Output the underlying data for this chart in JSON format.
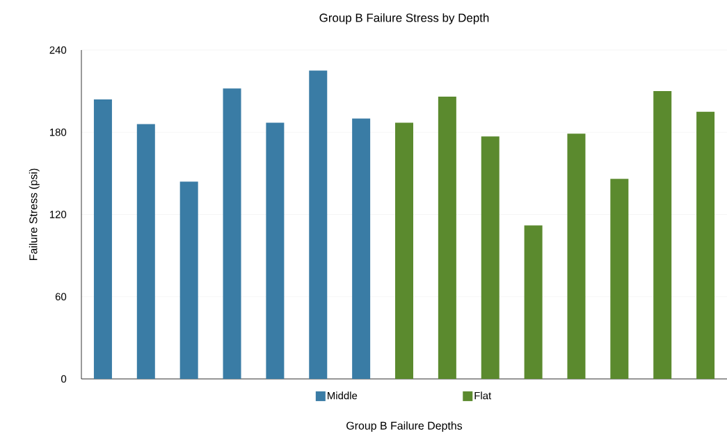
{
  "chart_data": {
    "type": "bar",
    "title": "Group B Failure Stress by Depth",
    "xlabel": "Group B Failure Depths",
    "ylabel": "Failure Stress (psi)",
    "categories": [
      null,
      null,
      null,
      null,
      null,
      null,
      null,
      null,
      null,
      null,
      null,
      null,
      null,
      null,
      null
    ],
    "series": [
      {
        "name": "Middle",
        "color": "#3a7ca5",
        "values": [
          204,
          186,
          144,
          212,
          187,
          225,
          190,
          null,
          null,
          null,
          null,
          null,
          null,
          null,
          null
        ]
      },
      {
        "name": "Flat",
        "color": "#5b8a2e",
        "values": [
          null,
          null,
          null,
          null,
          null,
          null,
          null,
          187,
          206,
          177,
          112,
          179,
          146,
          210,
          195
        ]
      }
    ],
    "ylim": [
      0,
      240
    ],
    "yticks": [
      0,
      60,
      120,
      180,
      240
    ],
    "grid": "y",
    "legend": "bottom"
  }
}
